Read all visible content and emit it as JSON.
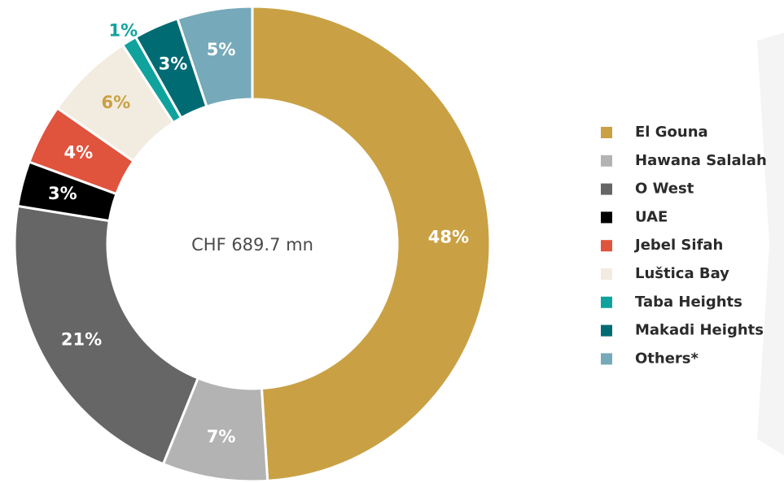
{
  "chart_data": {
    "type": "donut",
    "center_label": "CHF 689.7 mn",
    "categories": [
      "El Gouna",
      "Hawana Salalah",
      "O West",
      "UAE",
      "Jebel Sifah",
      "Luštica Bay",
      "Taba Heights",
      "Makadi Heights",
      "Others*"
    ],
    "values": [
      48,
      7,
      21,
      3,
      4,
      6,
      1,
      3,
      5
    ],
    "value_labels": [
      "48%",
      "7%",
      "21%",
      "3%",
      "4%",
      "6%",
      "1%",
      "3%",
      "5%"
    ],
    "colors": [
      "#c9a144",
      "#b3b3b3",
      "#666666",
      "#000000",
      "#e0533d",
      "#f2ebdf",
      "#10a39e",
      "#006b73",
      "#76a9b9"
    ],
    "legend": "right"
  }
}
